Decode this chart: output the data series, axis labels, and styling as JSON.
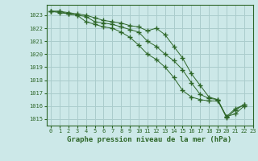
{
  "title": "Graphe pression niveau de la mer (hPa)",
  "bg_color": "#cce8e8",
  "grid_color": "#aacccc",
  "line_color": "#2d6628",
  "marker_color": "#2d6628",
  "xlim": [
    -0.5,
    23
  ],
  "ylim": [
    1014.5,
    1023.8
  ],
  "xticks": [
    0,
    1,
    2,
    3,
    4,
    5,
    6,
    7,
    8,
    9,
    10,
    11,
    12,
    13,
    14,
    15,
    16,
    17,
    18,
    19,
    20,
    21,
    22,
    23
  ],
  "yticks": [
    1015,
    1016,
    1017,
    1018,
    1019,
    1020,
    1021,
    1022,
    1023
  ],
  "series": [
    [
      1023.3,
      1023.2,
      1023.1,
      1023.0,
      1022.9,
      1022.5,
      1022.4,
      1022.3,
      1022.1,
      1021.9,
      1021.7,
      1021.0,
      1020.6,
      1020.0,
      1019.5,
      1018.8,
      1017.8,
      1016.9,
      1016.6,
      1016.5,
      1015.2,
      1015.8,
      1016.1,
      null
    ],
    [
      1023.3,
      1023.3,
      1023.1,
      1023.0,
      1022.5,
      1022.3,
      1022.1,
      1022.0,
      1021.7,
      1021.3,
      1020.7,
      1020.0,
      1019.6,
      1019.0,
      1018.2,
      1017.2,
      1016.7,
      1016.5,
      1016.4,
      1016.4,
      1015.2,
      1015.4,
      1016.0,
      null
    ],
    [
      1023.3,
      1023.3,
      1023.2,
      1023.1,
      1023.0,
      1022.8,
      1022.6,
      1022.5,
      1022.4,
      1022.2,
      1022.1,
      1021.8,
      1022.0,
      1021.5,
      1020.6,
      1019.7,
      1018.5,
      1017.6,
      1016.7,
      1016.5,
      1015.1,
      1015.7,
      1016.1,
      null
    ]
  ]
}
